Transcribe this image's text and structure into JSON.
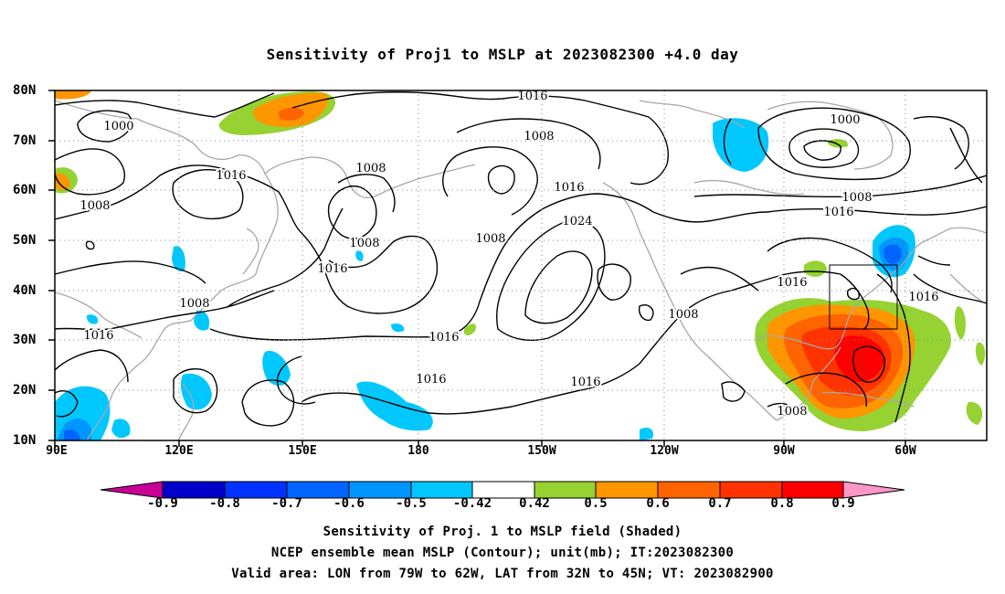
{
  "title": "Sensitivity of Proj1 to MSLP at 2023082300 +4.0 day",
  "map": {
    "lat_labels": [
      "80N",
      "70N",
      "60N",
      "50N",
      "40N",
      "30N",
      "20N",
      "10N"
    ],
    "lon_labels": [
      "90E",
      "120E",
      "150E",
      "180",
      "150W",
      "120W",
      "90W",
      "60W"
    ],
    "contour_labels": [
      {
        "text": "1016"
      },
      {
        "text": "1000"
      },
      {
        "text": "1008"
      },
      {
        "text": "1016"
      },
      {
        "text": "1008"
      },
      {
        "text": "1008"
      },
      {
        "text": "1016"
      },
      {
        "text": "1024"
      },
      {
        "text": "1008"
      },
      {
        "text": "1008"
      },
      {
        "text": "1016"
      },
      {
        "text": "1000"
      },
      {
        "text": "1008"
      },
      {
        "text": "1016"
      },
      {
        "text": "1016"
      },
      {
        "text": "1016"
      },
      {
        "text": "1008"
      },
      {
        "text": "1016"
      },
      {
        "text": "1016"
      },
      {
        "text": "1008"
      },
      {
        "text": "1016"
      },
      {
        "text": "1016"
      },
      {
        "text": "1008"
      }
    ],
    "valid_box": {
      "lon_from": "79W",
      "lon_to": "62W",
      "lat_from": "32N",
      "lat_to": "45N"
    }
  },
  "colorbar": {
    "labels": [
      "-0.9",
      "-0.8",
      "-0.7",
      "-0.6",
      "-0.5",
      "-0.42",
      "0.42",
      "0.5",
      "0.6",
      "0.7",
      "0.8",
      "0.9"
    ],
    "colors": [
      "#c80097",
      "#0000c8",
      "#0032ff",
      "#0064ff",
      "#0096ff",
      "#00c8ff",
      "#ffffff",
      "#96d232",
      "#ff9600",
      "#ff6400",
      "#ff3200",
      "#ff0000",
      "#ff96c8"
    ]
  },
  "footer": {
    "line1": "Sensitivity of Proj. 1 to MSLP field (Shaded)",
    "line2": "NCEP ensemble mean MSLP (Contour); unit(mb); IT:2023082300",
    "line3": "Valid area: LON from 79W to 62W, LAT from 32N to 45N; VT: 2023082900"
  }
}
